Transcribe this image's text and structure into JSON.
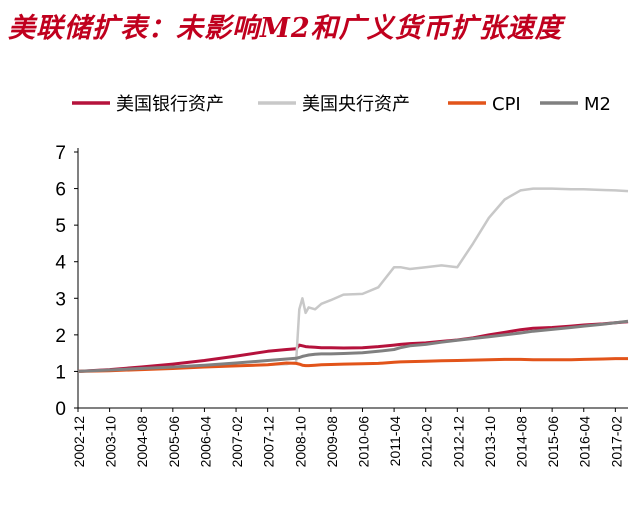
{
  "title": "美联储扩表：未影响M2和广义货币扩张速度",
  "colors": {
    "title": "#c0001e",
    "us_bank_assets": "#b5123c",
    "fed_assets": "#c8c8c8",
    "cpi": "#e2541a",
    "m2": "#808080"
  },
  "chart_data": {
    "type": "line",
    "title": "美联储扩表：未影响M2和广义货币扩张速度",
    "xlabel": "",
    "ylabel": "",
    "ylim": [
      0,
      7
    ],
    "yticks": [
      "0",
      "1",
      "2",
      "3",
      "4",
      "5",
      "6",
      "7"
    ],
    "xticks": [
      "2002-12",
      "2003-10",
      "2004-08",
      "2005-06",
      "2006-04",
      "2007-02",
      "2007-12",
      "2008-10",
      "2009-08",
      "2010-06",
      "2011-04",
      "2012-02",
      "2012-12",
      "2013-10",
      "2014-08",
      "2015-06",
      "2016-04",
      "2017-02"
    ],
    "legend_position": "top",
    "grid": false,
    "x_dates": [
      "2002-12",
      "2003-10",
      "2004-08",
      "2005-06",
      "2006-04",
      "2007-02",
      "2007-12",
      "2008-06",
      "2008-09",
      "2008-10",
      "2008-11",
      "2008-12",
      "2009-01",
      "2009-03",
      "2009-05",
      "2009-08",
      "2009-12",
      "2010-06",
      "2010-11",
      "2011-04",
      "2011-06",
      "2011-09",
      "2012-02",
      "2012-07",
      "2012-12",
      "2013-05",
      "2013-10",
      "2014-03",
      "2014-08",
      "2014-12",
      "2015-06",
      "2015-12",
      "2016-04",
      "2016-10",
      "2017-02",
      "2017-06"
    ],
    "series": [
      {
        "name": "美国银行资产",
        "values": [
          1.0,
          1.05,
          1.12,
          1.2,
          1.3,
          1.42,
          1.55,
          1.6,
          1.62,
          1.72,
          1.7,
          1.68,
          1.67,
          1.66,
          1.65,
          1.65,
          1.64,
          1.65,
          1.68,
          1.72,
          1.74,
          1.76,
          1.78,
          1.82,
          1.86,
          1.92,
          2.0,
          2.07,
          2.14,
          2.18,
          2.2,
          2.24,
          2.27,
          2.3,
          2.33,
          2.36
        ]
      },
      {
        "name": "美国央行资产",
        "values": [
          1.0,
          1.03,
          1.06,
          1.09,
          1.12,
          1.15,
          1.18,
          1.2,
          1.25,
          2.7,
          3.0,
          2.6,
          2.75,
          2.7,
          2.85,
          2.95,
          3.1,
          3.12,
          3.3,
          3.85,
          3.85,
          3.8,
          3.85,
          3.9,
          3.85,
          4.5,
          5.2,
          5.7,
          5.95,
          6.0,
          6.0,
          5.98,
          5.98,
          5.96,
          5.95,
          5.93
        ]
      },
      {
        "name": "CPI",
        "values": [
          1.0,
          1.02,
          1.05,
          1.08,
          1.12,
          1.15,
          1.18,
          1.23,
          1.22,
          1.2,
          1.17,
          1.16,
          1.16,
          1.17,
          1.18,
          1.19,
          1.2,
          1.21,
          1.22,
          1.25,
          1.26,
          1.27,
          1.28,
          1.29,
          1.3,
          1.31,
          1.32,
          1.33,
          1.33,
          1.32,
          1.32,
          1.32,
          1.33,
          1.34,
          1.35,
          1.35
        ]
      },
      {
        "name": "M2",
        "values": [
          1.0,
          1.04,
          1.08,
          1.12,
          1.17,
          1.23,
          1.3,
          1.34,
          1.36,
          1.38,
          1.41,
          1.43,
          1.45,
          1.47,
          1.48,
          1.48,
          1.49,
          1.51,
          1.55,
          1.6,
          1.65,
          1.7,
          1.74,
          1.8,
          1.85,
          1.9,
          1.95,
          2.0,
          2.05,
          2.1,
          2.15,
          2.2,
          2.24,
          2.29,
          2.33,
          2.37
        ]
      }
    ]
  }
}
